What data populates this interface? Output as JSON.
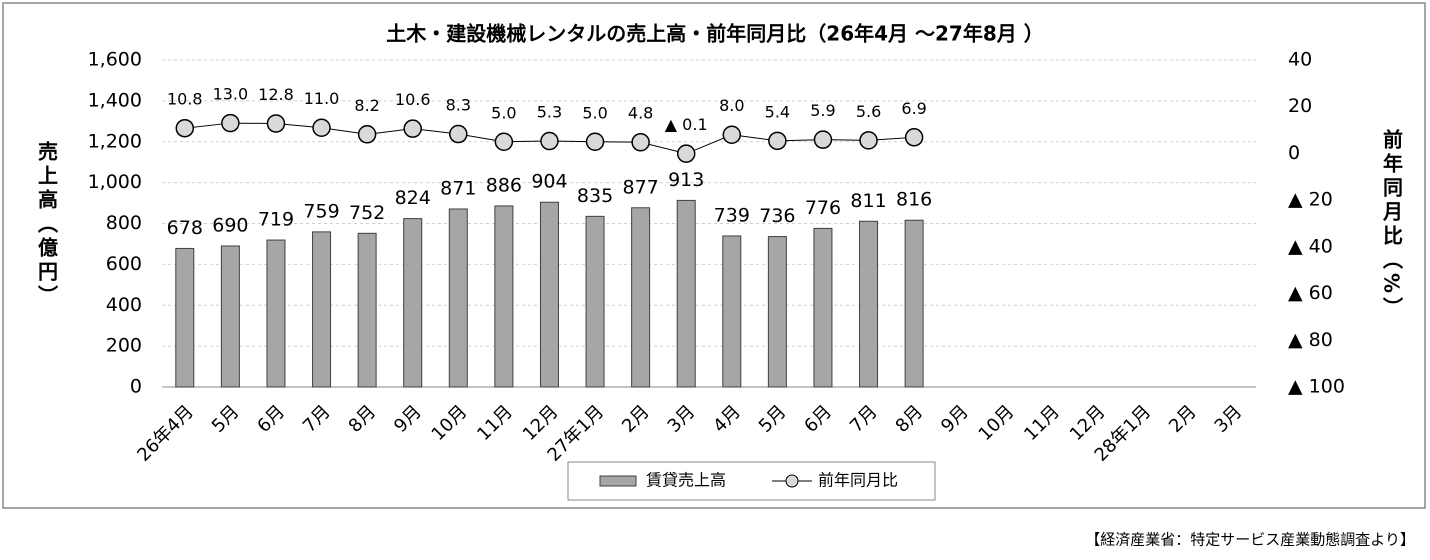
{
  "chart_data": {
    "type": "bar_line",
    "title": "土木・建設機械レンタルの売上高・前年同月比（26年4月 ～27年8月 ）",
    "y_label": "売上高（億円）",
    "y2_label": "前年同月比（%）",
    "source": "【経済産業省：特定サービス産業動態調査より】",
    "categories": [
      "26年4月",
      "5月",
      "6月",
      "7月",
      "8月",
      "9月",
      "10月",
      "11月",
      "12月",
      "27年1月",
      "2月",
      "3月",
      "4月",
      "5月",
      "6月",
      "7月",
      "8月",
      "9月",
      "10月",
      "11月",
      "12月",
      "28年1月",
      "2月",
      "3月"
    ],
    "series": [
      {
        "name": "賃貸売上高",
        "type": "bar",
        "color": "#a6a6a6",
        "values": [
          678,
          690,
          719,
          759,
          752,
          824,
          871,
          886,
          904,
          835,
          877,
          913,
          739,
          736,
          776,
          811,
          816,
          null,
          null,
          null,
          null,
          null,
          null,
          null
        ]
      },
      {
        "name": "前年同月比",
        "type": "line",
        "axis": "y2",
        "color": "#d9d9d9",
        "values": [
          10.8,
          13.0,
          12.8,
          11.0,
          8.2,
          10.6,
          8.3,
          5.0,
          5.3,
          5.0,
          4.8,
          -0.1,
          8.0,
          5.4,
          5.9,
          5.6,
          6.9,
          null,
          null,
          null,
          null,
          null,
          null,
          null
        ],
        "value_labels": [
          "10.8",
          "13.0",
          "12.8",
          "11.0",
          "8.2",
          "10.6",
          "8.3",
          "5.0",
          "5.3",
          "5.0",
          "4.8",
          "▲ 0.1",
          "8.0",
          "5.4",
          "5.9",
          "5.6",
          "6.9",
          null,
          null,
          null,
          null,
          null,
          null,
          null
        ]
      }
    ],
    "ylim": [
      0,
      1600
    ],
    "yticks": [
      0,
      200,
      400,
      600,
      800,
      {
        "value": 1000,
        "label": "1,000"
      },
      {
        "value": 1200,
        "label": "1,200"
      },
      {
        "value": 1400,
        "label": "1,400"
      },
      {
        "value": 1600,
        "label": "1,600"
      }
    ],
    "y2lim": [
      -100,
      40
    ],
    "y2ticks": [
      {
        "value": -100,
        "label": "▲ 100"
      },
      {
        "value": -80,
        "label": "▲ 80"
      },
      {
        "value": -60,
        "label": "▲ 60"
      },
      {
        "value": -40,
        "label": "▲ 40"
      },
      {
        "value": -20,
        "label": "▲ 20"
      },
      0,
      20,
      40
    ],
    "grid": true,
    "legend": "bottom"
  }
}
